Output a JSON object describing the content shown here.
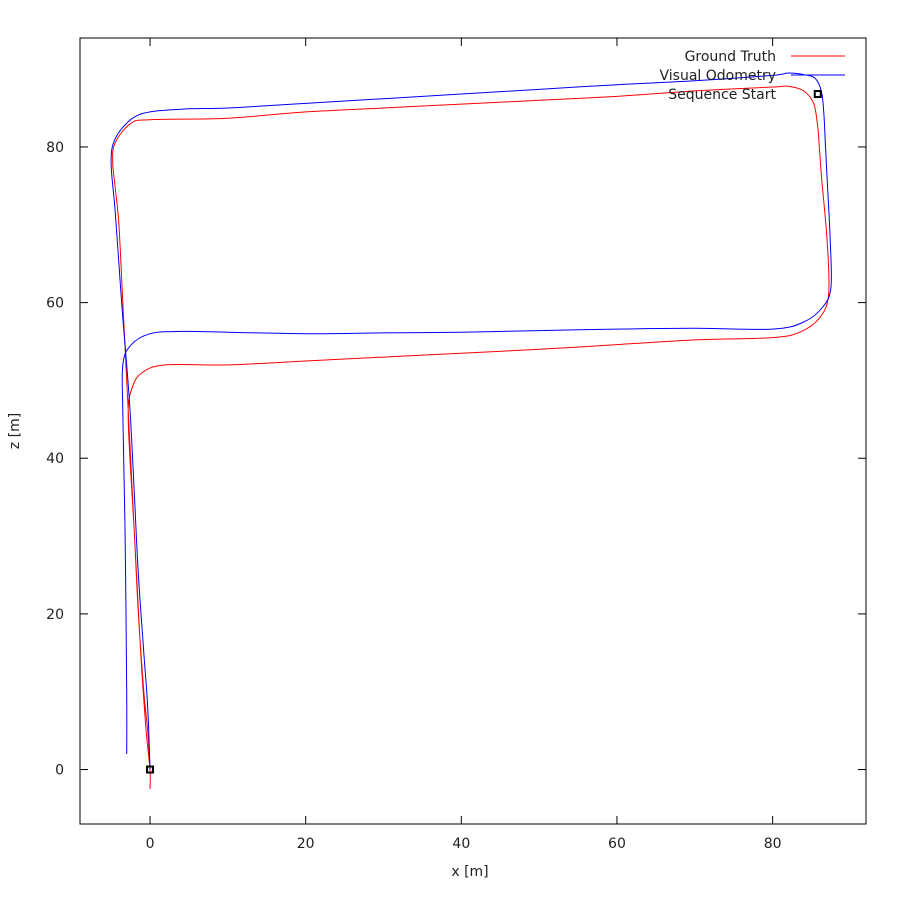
{
  "chart_data": {
    "type": "line",
    "xlabel": "x [m]",
    "ylabel": "z [m]",
    "xlim": [
      -9,
      92
    ],
    "ylim": [
      -7,
      94
    ],
    "xticks": [
      0,
      20,
      40,
      60,
      80
    ],
    "yticks": [
      0,
      20,
      40,
      60,
      80
    ],
    "grid": false,
    "legend_position": "top-right",
    "series": [
      {
        "name": "Ground Truth",
        "color": "#ff0000",
        "points": [
          [
            0,
            -2.5
          ],
          [
            0,
            0
          ],
          [
            -0.5,
            5
          ],
          [
            -1.2,
            15
          ],
          [
            -2,
            30
          ],
          [
            -2.8,
            45
          ],
          [
            -2.3,
            49
          ],
          [
            -1,
            51
          ],
          [
            2,
            52
          ],
          [
            10,
            52
          ],
          [
            20,
            52.5
          ],
          [
            30,
            53
          ],
          [
            40,
            53.5
          ],
          [
            50,
            54
          ],
          [
            60,
            54.6
          ],
          [
            70,
            55.2
          ],
          [
            80,
            55.5
          ],
          [
            83.5,
            56.2
          ],
          [
            86,
            58
          ],
          [
            87.2,
            61
          ],
          [
            87,
            68
          ],
          [
            86.3,
            76
          ],
          [
            86,
            80
          ],
          [
            85.8,
            82.5
          ],
          [
            85.3,
            85.5
          ],
          [
            84,
            87.2
          ],
          [
            82,
            87.8
          ],
          [
            80,
            87.7
          ],
          [
            70,
            87.2
          ],
          [
            60,
            86.5
          ],
          [
            50,
            86
          ],
          [
            40,
            85.5
          ],
          [
            30,
            85
          ],
          [
            20,
            84.5
          ],
          [
            10,
            83.7
          ],
          [
            0,
            83.5
          ],
          [
            -2.5,
            83
          ],
          [
            -4.5,
            80.5
          ],
          [
            -4.8,
            78
          ],
          [
            -4.5,
            75
          ],
          [
            -4,
            70
          ],
          [
            -3.5,
            60
          ],
          [
            -3,
            50
          ],
          [
            -2.5,
            40
          ],
          [
            -2,
            30
          ],
          [
            -1.5,
            20
          ],
          [
            -0.8,
            10
          ],
          [
            -0.3,
            5
          ],
          [
            0,
            0
          ]
        ]
      },
      {
        "name": "Visual Odometry",
        "color": "#0000ff",
        "points": [
          [
            -3,
            2
          ],
          [
            -3,
            10
          ],
          [
            -3.2,
            30
          ],
          [
            -3.5,
            46
          ],
          [
            -3.5,
            52
          ],
          [
            -2.5,
            54.5
          ],
          [
            0,
            56
          ],
          [
            4,
            56.3
          ],
          [
            10,
            56.2
          ],
          [
            20,
            56
          ],
          [
            30,
            56.1
          ],
          [
            40,
            56.2
          ],
          [
            50,
            56.4
          ],
          [
            60,
            56.6
          ],
          [
            70,
            56.7
          ],
          [
            80,
            56.6
          ],
          [
            84,
            57.5
          ],
          [
            86.5,
            59.5
          ],
          [
            87.5,
            62
          ],
          [
            87.4,
            68
          ],
          [
            87,
            76
          ],
          [
            86.8,
            80
          ],
          [
            86.6,
            84
          ],
          [
            86.3,
            87
          ],
          [
            85.5,
            88.8
          ],
          [
            84,
            89.3
          ],
          [
            82,
            89.5
          ],
          [
            80,
            89.2
          ],
          [
            70,
            88.5
          ],
          [
            60,
            88
          ],
          [
            50,
            87.4
          ],
          [
            40,
            86.8
          ],
          [
            30,
            86.2
          ],
          [
            20,
            85.6
          ],
          [
            10,
            85
          ],
          [
            5,
            84.9
          ],
          [
            0,
            84.5
          ],
          [
            -2.5,
            83.5
          ],
          [
            -4.5,
            81
          ],
          [
            -5,
            78
          ],
          [
            -4.5,
            72
          ],
          [
            -4,
            65
          ],
          [
            -3.5,
            58
          ],
          [
            -3,
            52
          ],
          [
            -2.5,
            45
          ],
          [
            -2,
            35
          ],
          [
            -1.5,
            25
          ],
          [
            -0.8,
            15
          ],
          [
            -0.3,
            8
          ],
          [
            0,
            0
          ]
        ]
      }
    ],
    "markers": [
      {
        "name": "Sequence Start",
        "points": [
          [
            0,
            0
          ],
          [
            85.8,
            86.8
          ]
        ]
      }
    ]
  }
}
